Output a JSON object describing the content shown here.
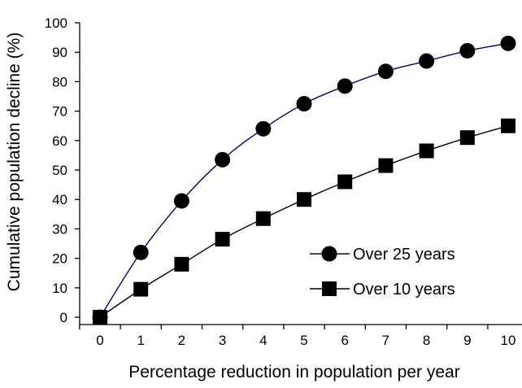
{
  "chart_data": {
    "type": "line",
    "title": "",
    "xlabel": "Percentage reduction in population per year",
    "ylabel": "Cumulative population decline (%)",
    "x": [
      0,
      1,
      2,
      3,
      4,
      5,
      6,
      7,
      8,
      9,
      10
    ],
    "xlim": [
      0,
      10
    ],
    "ylim": [
      0,
      100
    ],
    "x_ticks": [
      "0",
      "1",
      "2",
      "3",
      "4",
      "5",
      "6",
      "7",
      "8",
      "9",
      "10"
    ],
    "y_ticks": [
      "0",
      "10",
      "20",
      "30",
      "40",
      "50",
      "60",
      "70",
      "80",
      "90",
      "100"
    ],
    "grid": false,
    "legend_position": "bottom-right",
    "series": [
      {
        "name": "Over 25 years",
        "marker": "circle",
        "line_color": "#000080",
        "marker_color": "#000000",
        "values": [
          0,
          22,
          39.5,
          53.5,
          64,
          72.5,
          78.5,
          83.5,
          87,
          90.5,
          93
        ]
      },
      {
        "name": "Over 10 years",
        "marker": "square",
        "line_color": "#000000",
        "marker_color": "#000000",
        "values": [
          0,
          9.5,
          18,
          26.5,
          33.5,
          40,
          46,
          51.5,
          56.5,
          61,
          65
        ]
      }
    ]
  }
}
